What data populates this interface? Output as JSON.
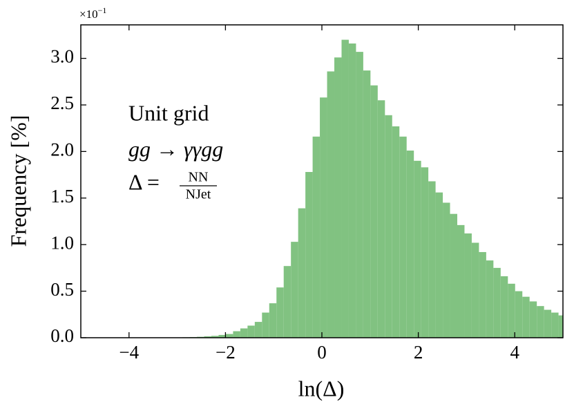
{
  "chart_data": {
    "type": "histogram",
    "xlabel": "ln(Δ)",
    "ylabel": "Frequency [%]",
    "offset_text": {
      "base": "×10",
      "exponent": "−1"
    },
    "annotations": {
      "line1": "Unit grid",
      "line2": "gg → γγgg",
      "line3_lhs": "Δ =",
      "line3_num": "NN",
      "line3_den": "NJet"
    },
    "color": "#81c281",
    "bins": [
      -2.892,
      -2.742,
      -2.592,
      -2.442,
      -2.292,
      -2.142,
      -1.992,
      -1.842,
      -1.692,
      -1.542,
      -1.392,
      -1.242,
      -1.092,
      -0.942,
      -0.792,
      -0.642,
      -0.492,
      -0.342,
      -0.192,
      -0.042,
      0.108,
      0.258,
      0.408,
      0.558,
      0.708,
      0.858,
      1.008,
      1.158,
      1.308,
      1.458,
      1.608,
      1.758,
      1.908,
      2.058,
      2.208,
      2.358,
      2.508,
      2.658,
      2.808,
      2.958,
      3.108,
      3.258,
      3.408,
      3.558,
      3.708,
      3.858,
      4.008,
      4.158,
      4.308,
      4.458,
      4.608,
      4.758,
      4.908,
      5.058
    ],
    "values": [
      0.005,
      0.007,
      0.01,
      0.015,
      0.02,
      0.03,
      0.04,
      0.07,
      0.1,
      0.13,
      0.17,
      0.27,
      0.37,
      0.54,
      0.77,
      1.03,
      1.39,
      1.78,
      2.16,
      2.58,
      2.86,
      3.01,
      3.2,
      3.16,
      3.07,
      2.87,
      2.71,
      2.55,
      2.39,
      2.27,
      2.16,
      2.01,
      1.9,
      1.83,
      1.68,
      1.56,
      1.45,
      1.33,
      1.21,
      1.12,
      1.02,
      0.92,
      0.83,
      0.75,
      0.66,
      0.58,
      0.5,
      0.44,
      0.39,
      0.34,
      0.3,
      0.27,
      0.24
    ],
    "xlim": [
      -5,
      5
    ],
    "ylim": [
      0,
      3.36
    ],
    "xticks": [
      {
        "value": -4,
        "label": "−4"
      },
      {
        "value": -2,
        "label": "−2"
      },
      0,
      2,
      4
    ],
    "yticks": [
      {
        "value": 0,
        "label": "0.0"
      },
      {
        "value": 0.5,
        "label": "0.5"
      },
      {
        "value": 1,
        "label": "1.0"
      },
      {
        "value": 1.5,
        "label": "1.5"
      },
      {
        "value": 2,
        "label": "2.0"
      },
      {
        "value": 2.5,
        "label": "2.5"
      },
      {
        "value": 3,
        "label": "3.0"
      }
    ]
  }
}
